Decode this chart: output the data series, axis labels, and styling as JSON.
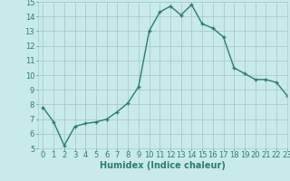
{
  "x": [
    0,
    1,
    2,
    3,
    4,
    5,
    6,
    7,
    8,
    9,
    10,
    11,
    12,
    13,
    14,
    15,
    16,
    17,
    18,
    19,
    20,
    21,
    22,
    23
  ],
  "y": [
    7.8,
    6.8,
    5.2,
    6.5,
    6.7,
    6.8,
    7.0,
    7.5,
    8.1,
    9.2,
    13.0,
    14.3,
    14.7,
    14.1,
    14.8,
    13.5,
    13.2,
    12.6,
    10.5,
    10.1,
    9.7,
    9.7,
    9.5,
    8.6
  ],
  "line_color": "#2e7d6e",
  "marker": "+",
  "marker_size": 3,
  "bg_color": "#c8eae8",
  "grid_color": "#a8ccc8",
  "xlabel": "Humidex (Indice chaleur)",
  "ylim": [
    5,
    15
  ],
  "xlim": [
    -0.5,
    23
  ],
  "yticks": [
    5,
    6,
    7,
    8,
    9,
    10,
    11,
    12,
    13,
    14,
    15
  ],
  "xticks": [
    0,
    1,
    2,
    3,
    4,
    5,
    6,
    7,
    8,
    9,
    10,
    11,
    12,
    13,
    14,
    15,
    16,
    17,
    18,
    19,
    20,
    21,
    22,
    23
  ],
  "xlabel_fontsize": 7,
  "tick_fontsize": 6,
  "line_width": 1.0
}
